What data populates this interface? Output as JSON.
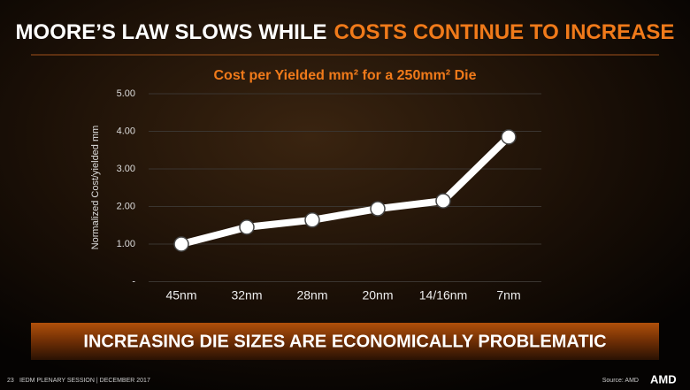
{
  "slide": {
    "title_main": "MOORE’S LAW SLOWS WHILE",
    "title_highlight": "COSTS CONTINUE TO INCREASE",
    "banner": "INCREASING DIE SIZES ARE ECONOMICALLY PROBLEMATIC",
    "page_number": "23",
    "footer": "IEDM PLENARY SESSION | DECEMBER 2017",
    "source": "Source: AMD",
    "logo": "AMD"
  },
  "chart_data": {
    "type": "line",
    "title": "Cost per Yielded mm² for a 250mm² Die",
    "y_label": "Normalized Cost/yielded mm",
    "categories": [
      "45nm",
      "32nm",
      "28nm",
      "20nm",
      "14/16nm",
      "7nm"
    ],
    "values": [
      1.0,
      1.45,
      1.64,
      1.94,
      2.15,
      3.85
    ],
    "color": "#ffffff",
    "ylim": [
      0,
      5
    ],
    "yticks": [
      {
        "value": 0,
        "label": "-"
      },
      {
        "value": 1,
        "label": "1.00"
      },
      {
        "value": 2,
        "label": "2.00"
      },
      {
        "value": 3,
        "label": "3.00"
      },
      {
        "value": 4,
        "label": "4.00"
      },
      {
        "value": 5,
        "label": "5.00"
      }
    ],
    "grid": true
  }
}
